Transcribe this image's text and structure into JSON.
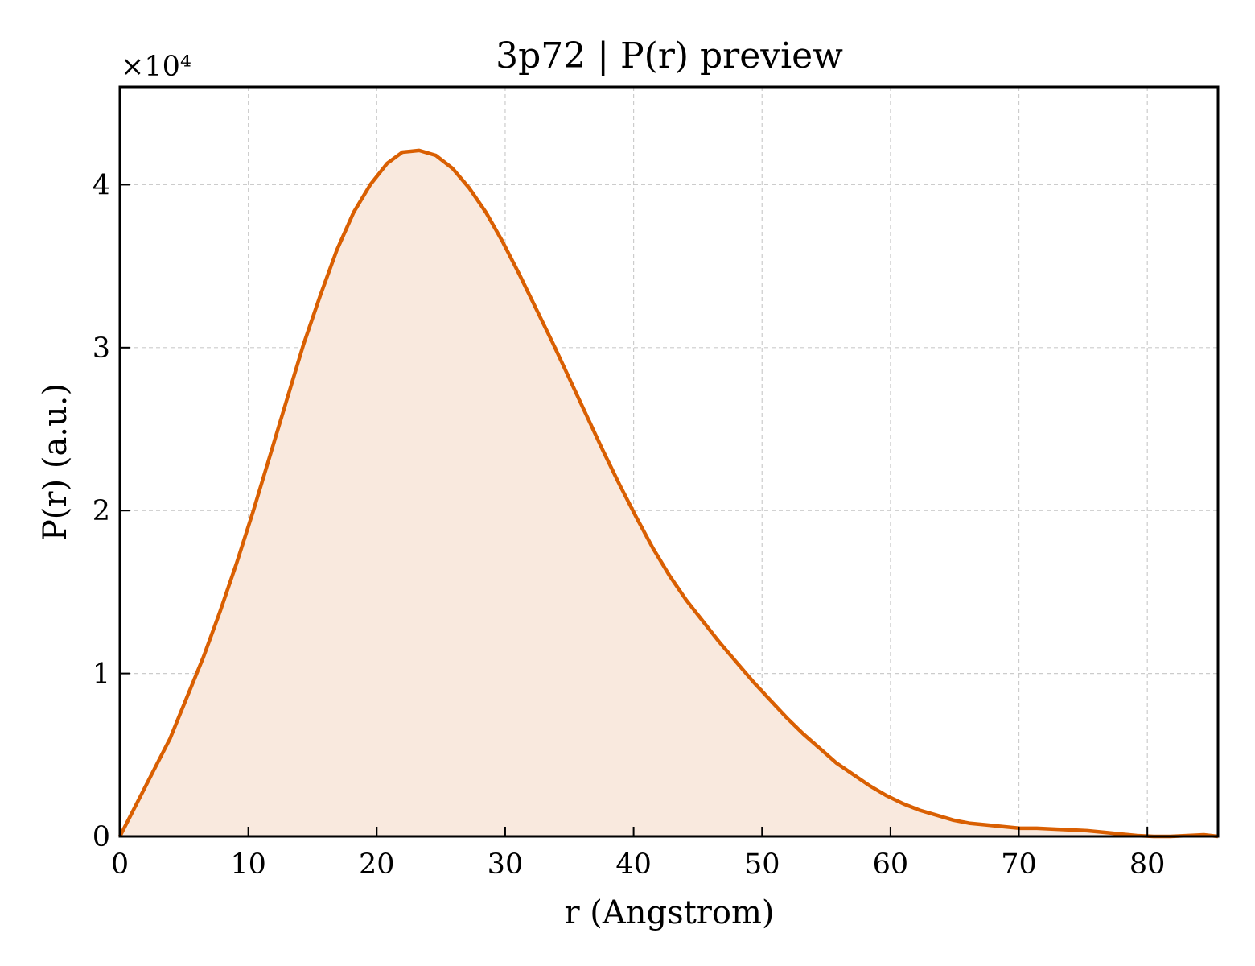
{
  "chart_data": {
    "type": "area",
    "title": "3p72 | P(r) preview",
    "xlabel": "r (Angstrom)",
    "ylabel": "P(r) (a.u.)",
    "y_multiplier_label": "×10⁴",
    "xlim": [
      0,
      85.5
    ],
    "ylim": [
      0,
      4.6
    ],
    "y_scale_factor": 10000,
    "x_ticks": [
      0,
      10,
      20,
      30,
      40,
      50,
      60,
      70,
      80
    ],
    "y_ticks": [
      0,
      1,
      2,
      3,
      4
    ],
    "grid": true,
    "line_color": "#d95f02",
    "fill_color": "#f9e9de",
    "series": [
      {
        "x": [
          0,
          1.3,
          2.6,
          3.9,
          5.2,
          6.5,
          7.8,
          9.1,
          10.4,
          11.7,
          13.0,
          14.3,
          15.6,
          16.9,
          18.2,
          19.5,
          20.8,
          22.0,
          23.3,
          24.6,
          25.9,
          27.2,
          28.5,
          29.8,
          31.1,
          32.4,
          33.7,
          35.0,
          36.3,
          37.6,
          38.9,
          40.2,
          41.5,
          42.8,
          44.1,
          45.4,
          46.7,
          48.0,
          49.3,
          50.6,
          51.9,
          53.2,
          54.5,
          55.8,
          57.1,
          58.4,
          59.7,
          61.0,
          62.3,
          63.6,
          64.9,
          66.2,
          67.5,
          68.8,
          70.1,
          71.4,
          72.7,
          74.0,
          75.3,
          76.6,
          77.9,
          79.2,
          80.5,
          81.8,
          83.1,
          84.4,
          85.5
        ],
        "y": [
          0,
          0.2,
          0.4,
          0.6,
          0.85,
          1.1,
          1.38,
          1.68,
          2.0,
          2.34,
          2.68,
          3.02,
          3.32,
          3.6,
          3.83,
          4.0,
          4.13,
          4.2,
          4.21,
          4.18,
          4.1,
          3.98,
          3.83,
          3.65,
          3.45,
          3.24,
          3.03,
          2.81,
          2.59,
          2.37,
          2.16,
          1.96,
          1.77,
          1.6,
          1.45,
          1.32,
          1.19,
          1.07,
          0.95,
          0.84,
          0.73,
          0.63,
          0.54,
          0.45,
          0.38,
          0.31,
          0.25,
          0.2,
          0.16,
          0.13,
          0.1,
          0.08,
          0.07,
          0.06,
          0.05,
          0.05,
          0.045,
          0.04,
          0.035,
          0.025,
          0.015,
          0.005,
          0.0,
          0.0,
          0.005,
          0.01,
          0.0
        ]
      }
    ]
  }
}
